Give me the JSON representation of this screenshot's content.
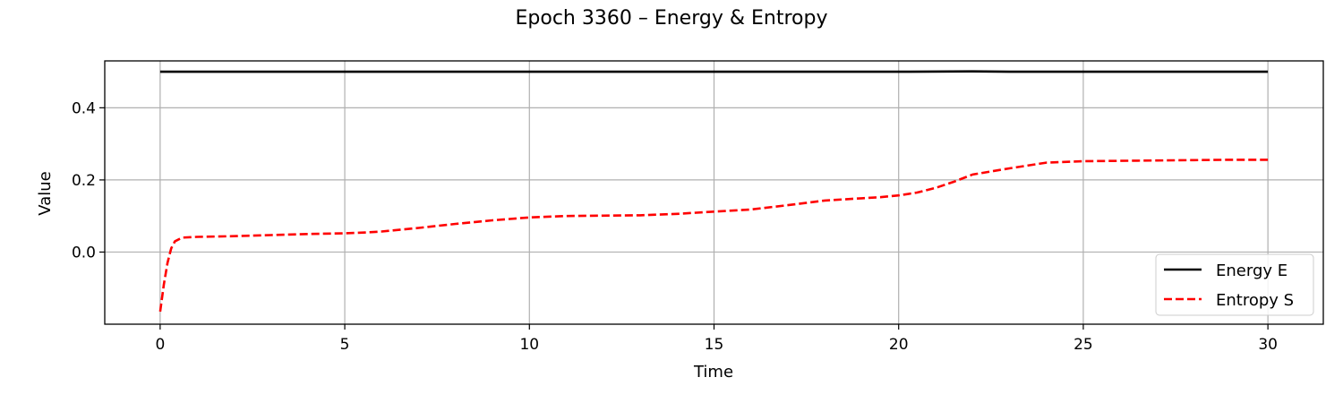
{
  "chart_data": {
    "type": "line",
    "title": "Epoch 3360 – Energy & Entropy",
    "xlabel": "Time",
    "ylabel": "Value",
    "xlim": [
      -1.5,
      31.5
    ],
    "ylim": [
      -0.2,
      0.53
    ],
    "xticks": [
      0,
      5,
      10,
      15,
      20,
      25,
      30
    ],
    "yticks": [
      0.0,
      0.2,
      0.4
    ],
    "ytick_labels": [
      "0.0",
      "0.2",
      "0.4"
    ],
    "grid": true,
    "legend_position": "lower-right",
    "series": [
      {
        "name": "Energy E",
        "color": "#000000",
        "style": "solid",
        "x": [
          0,
          5,
          10,
          15,
          20,
          22,
          23,
          25,
          30
        ],
        "y": [
          0.5,
          0.5,
          0.5,
          0.5,
          0.5,
          0.501,
          0.5,
          0.5,
          0.5
        ]
      },
      {
        "name": "Entropy S",
        "color": "#ff0000",
        "style": "dashed",
        "x": [
          0,
          0.1,
          0.2,
          0.3,
          0.4,
          0.6,
          1,
          2,
          3,
          4,
          5,
          5.5,
          6,
          7,
          8,
          9,
          10,
          11,
          12,
          13,
          14,
          15,
          16,
          17,
          18,
          19,
          19.5,
          20,
          20.5,
          21,
          21.5,
          22,
          23,
          24,
          25,
          26,
          27,
          28,
          29,
          30
        ],
        "y": [
          -0.165,
          -0.09,
          -0.03,
          0.01,
          0.03,
          0.04,
          0.042,
          0.044,
          0.047,
          0.05,
          0.052,
          0.054,
          0.057,
          0.067,
          0.078,
          0.088,
          0.096,
          0.1,
          0.101,
          0.102,
          0.106,
          0.112,
          0.118,
          0.13,
          0.143,
          0.149,
          0.152,
          0.157,
          0.165,
          0.178,
          0.195,
          0.215,
          0.232,
          0.248,
          0.252,
          0.253,
          0.254,
          0.255,
          0.256,
          0.256
        ]
      }
    ]
  }
}
